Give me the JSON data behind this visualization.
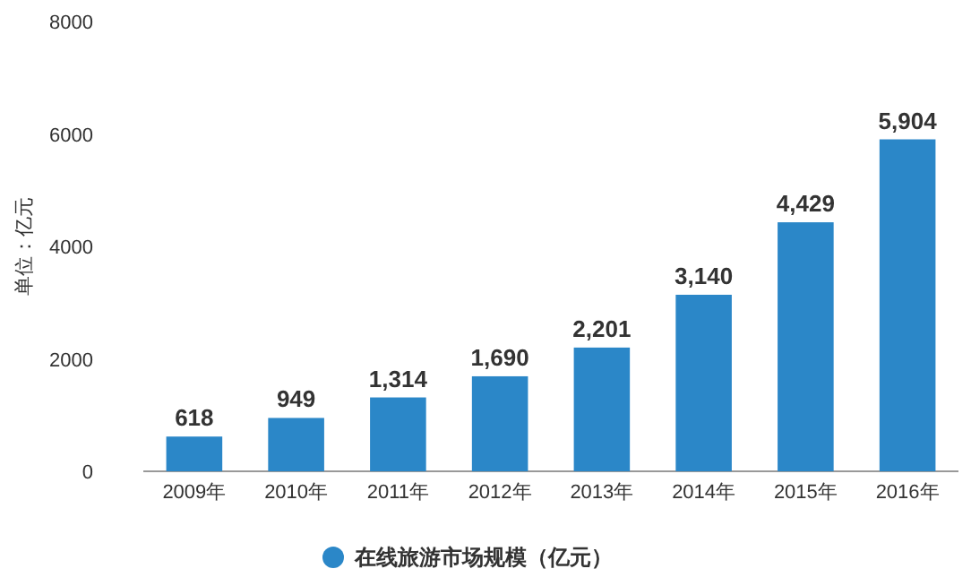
{
  "chart_data": {
    "type": "bar",
    "ylabel": "单位：亿元",
    "categories": [
      "2009年",
      "2010年",
      "2011年",
      "2012年",
      "2013年",
      "2014年",
      "2015年",
      "2016年"
    ],
    "series": [
      {
        "name": "在线旅游市场规模（亿元）",
        "color": "#2b87c8",
        "values": [
          618,
          949,
          1314,
          1690,
          2201,
          3140,
          4429,
          5904
        ],
        "value_labels": [
          "618",
          "949",
          "1,314",
          "1,690",
          "2,201",
          "3,140",
          "4,429",
          "5,904"
        ]
      }
    ],
    "ylim": [
      0,
      8000
    ],
    "yticks": [
      0,
      2000,
      4000,
      6000,
      8000
    ],
    "legend": "bottom",
    "grid": false
  }
}
